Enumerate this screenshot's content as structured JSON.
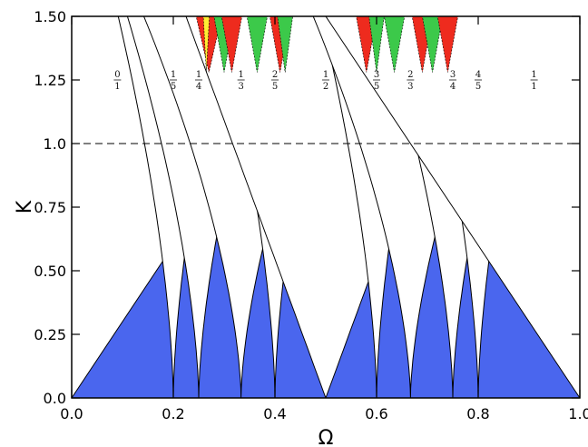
{
  "chart_data": {
    "type": "area",
    "xlabel": "Ω",
    "ylabel": "K",
    "xlim": [
      0.0,
      1.0
    ],
    "ylim": [
      0.0,
      1.5
    ],
    "x_ticks": [
      "0.0",
      "0.2",
      "0.4",
      "0.6",
      "0.8",
      "1.0"
    ],
    "x_tick_values": [
      0.0,
      0.2,
      0.4,
      0.6,
      0.8,
      1.0
    ],
    "y_ticks": [
      "0.0",
      "0.25",
      "0.50",
      "0.75",
      "1.0",
      "1.25",
      "1.50"
    ],
    "y_tick_values": [
      0.0,
      0.25,
      0.5,
      0.75,
      1.0,
      1.25,
      1.5
    ],
    "grid": false,
    "reference_line": {
      "y": 1.0,
      "style": "dashed"
    },
    "colors": {
      "below_critical": "#4a66ee",
      "above_critical": "#6aaaf2",
      "tongue": "#ffffff",
      "overlap_green": "#3cc94a",
      "overlap_red": "#ee2b1e",
      "overlap_yellow": "#ffee33"
    },
    "tongues": [
      {
        "num": "0",
        "den": "1",
        "omega": 0.0,
        "label_k": 1.25
      },
      {
        "num": "1",
        "den": "5",
        "omega": 0.2,
        "label_k": 1.25
      },
      {
        "num": "1",
        "den": "4",
        "omega": 0.25,
        "label_k": 1.25
      },
      {
        "num": "1",
        "den": "3",
        "omega": 0.3333,
        "label_k": 1.25
      },
      {
        "num": "2",
        "den": "5",
        "omega": 0.4,
        "label_k": 1.25
      },
      {
        "num": "1",
        "den": "2",
        "omega": 0.5,
        "label_k": 1.25
      },
      {
        "num": "3",
        "den": "5",
        "omega": 0.6,
        "label_k": 1.25
      },
      {
        "num": "2",
        "den": "3",
        "omega": 0.6667,
        "label_k": 1.25
      },
      {
        "num": "3",
        "den": "4",
        "omega": 0.75,
        "label_k": 1.25
      },
      {
        "num": "4",
        "den": "5",
        "omega": 0.8,
        "label_k": 1.25
      },
      {
        "num": "1",
        "den": "1",
        "omega": 1.0,
        "label_k": 1.25
      }
    ]
  }
}
